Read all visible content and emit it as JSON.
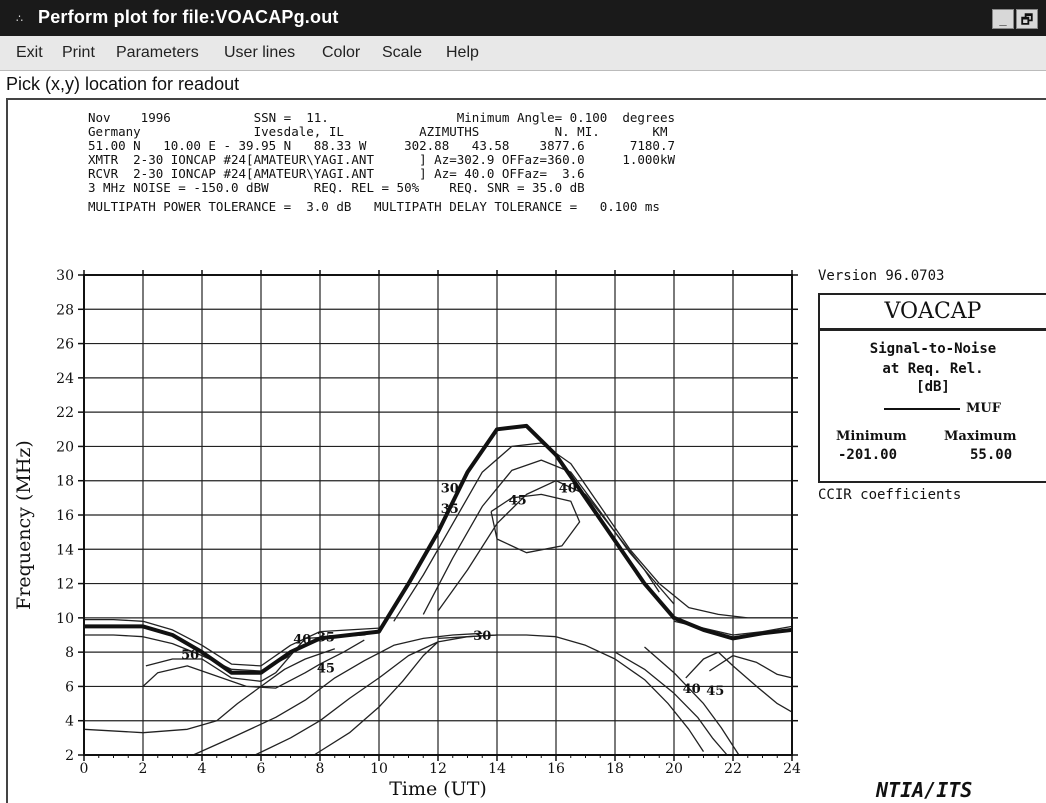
{
  "window": {
    "title": "Perform plot for file:VOACAPg.out",
    "minimize_label": "_",
    "restore_label": "🗗"
  },
  "menu": {
    "items": [
      {
        "label": "Exit"
      },
      {
        "label": "Print"
      },
      {
        "label": "Parameters"
      },
      {
        "label": "User lines"
      },
      {
        "label": "Color"
      },
      {
        "label": "Scale"
      },
      {
        "label": "Help"
      }
    ]
  },
  "prompt": "Pick (x,y) location for readout",
  "header_lines": [
    "Nov    1996           SSN =  11.                 Minimum Angle= 0.100  degrees",
    "Germany               Ivesdale, IL          AZIMUTHS          N. MI.       KM",
    "51.00 N   10.00 E - 39.95 N   88.33 W     302.88   43.58    3877.6      7180.7",
    "XMTR  2-30 IONCAP #24[AMATEUR\\YAGI.ANT      ] Az=302.9 OFFaz=360.0     1.000kW",
    "RCVR  2-30 IONCAP #24[AMATEUR\\YAGI.ANT      ] Az= 40.0 OFFaz=  3.6",
    "3 MHz NOISE = -150.0 dBW      REQ. REL = 50%    REQ. SNR = 35.0 dB",
    "MULTIPATH POWER TOLERANCE =  3.0 dB   MULTIPATH DELAY TOLERANCE =   0.100 ms"
  ],
  "legend": {
    "version": "Version 96.0703",
    "program": "VOACAP",
    "measure_lines": [
      "Signal-to-Noise",
      "at Req. Rel.",
      "[dB]"
    ],
    "muf_label": "MUF",
    "min_label": "Minimum",
    "max_label": "Maximum",
    "min_value": "-201.00",
    "max_value": "55.00",
    "coefficients": "CCIR coefficients"
  },
  "footer": "NTIA/ITS",
  "chart_data": {
    "type": "line",
    "xlabel": "Time  (UT)",
    "ylabel": "Frequency  (MHz)",
    "xlim": [
      0,
      24
    ],
    "ylim": [
      2,
      30
    ],
    "xticks": [
      0,
      2,
      4,
      6,
      8,
      10,
      12,
      14,
      16,
      18,
      20,
      22,
      24
    ],
    "yticks": [
      2,
      4,
      6,
      8,
      10,
      12,
      14,
      16,
      18,
      20,
      22,
      24,
      26,
      28,
      30
    ],
    "grid": true,
    "muf": {
      "name": "MUF",
      "x": [
        0,
        1,
        2,
        3,
        4,
        5,
        6,
        7,
        8,
        9,
        10,
        11,
        12,
        13,
        14,
        15,
        16,
        17,
        18,
        19,
        20,
        21,
        22,
        23,
        24
      ],
      "y": [
        9.5,
        9.5,
        9.5,
        9.0,
        8.0,
        6.8,
        6.8,
        8.0,
        8.8,
        9.0,
        9.2,
        12.0,
        15.0,
        18.5,
        21.0,
        21.2,
        19.5,
        17.0,
        14.5,
        12.0,
        10.0,
        9.3,
        8.8,
        9.1,
        9.3
      ]
    },
    "contour_labels": [
      {
        "text": "50",
        "x": 3.6,
        "y": 7.9
      },
      {
        "text": "40",
        "x": 7.4,
        "y": 8.8
      },
      {
        "text": "35",
        "x": 8.2,
        "y": 8.9
      },
      {
        "text": "45",
        "x": 8.2,
        "y": 7.1
      },
      {
        "text": "30",
        "x": 12.4,
        "y": 17.6
      },
      {
        "text": "35",
        "x": 12.4,
        "y": 16.4
      },
      {
        "text": "45",
        "x": 14.7,
        "y": 16.9
      },
      {
        "text": "40",
        "x": 16.4,
        "y": 17.6
      },
      {
        "text": "30",
        "x": 13.5,
        "y": 9.0
      },
      {
        "text": "40",
        "x": 20.6,
        "y": 5.9
      },
      {
        "text": "45",
        "x": 21.4,
        "y": 5.8
      }
    ],
    "contours": [
      {
        "name": "c50",
        "x": [
          2.1,
          3.0,
          4.0,
          5.0,
          6.0,
          6.5,
          7.0
        ],
        "y": [
          7.2,
          7.6,
          7.6,
          6.5,
          6.3,
          6.8,
          7.8
        ]
      },
      {
        "name": "c45-left",
        "x": [
          2.0,
          2.5,
          3.5,
          4.5,
          5.5,
          6.5,
          7.5,
          8.0,
          8.8,
          9.5
        ],
        "y": [
          6.0,
          6.8,
          7.2,
          6.6,
          6.0,
          5.9,
          6.8,
          7.3,
          8.0,
          8.7
        ]
      },
      {
        "name": "c40-left",
        "x": [
          0.0,
          1.0,
          2.0,
          3.0,
          4.0,
          5.0,
          6.0,
          7.0,
          7.5,
          8.5,
          9.5,
          10.0
        ],
        "y": [
          9.0,
          9.0,
          8.9,
          8.5,
          7.8,
          7.0,
          6.9,
          7.8,
          8.8,
          8.9,
          9.0,
          9.3
        ]
      },
      {
        "name": "c35-left",
        "x": [
          0.0,
          1.0,
          2.0,
          3.0,
          4.0,
          5.0,
          6.0,
          7.0,
          8.0,
          9.0,
          10.0
        ],
        "y": [
          9.9,
          9.9,
          9.8,
          9.3,
          8.4,
          7.3,
          7.2,
          8.4,
          9.2,
          9.3,
          9.4
        ]
      },
      {
        "name": "c30-left",
        "x": [
          0.0,
          2.0,
          3.5,
          4.5,
          5.2,
          6.0,
          6.8,
          7.5,
          8.5
        ],
        "y": [
          3.5,
          3.3,
          3.5,
          4.0,
          5.0,
          6.0,
          7.0,
          7.6,
          8.2
        ]
      },
      {
        "name": "c-low1",
        "x": [
          3.7,
          5.0,
          6.5,
          7.5,
          8.5,
          9.5,
          10.5,
          11.5,
          12.5,
          13.5
        ],
        "y": [
          2.0,
          3.0,
          4.2,
          5.2,
          6.5,
          7.5,
          8.4,
          8.8,
          9.0,
          9.1
        ]
      },
      {
        "name": "c-low2",
        "x": [
          5.8,
          7.0,
          8.0,
          9.0,
          10.0,
          11.0,
          12.0,
          13.0,
          14.0
        ],
        "y": [
          2.0,
          3.0,
          4.0,
          5.3,
          6.5,
          7.8,
          8.6,
          8.9,
          9.0
        ]
      },
      {
        "name": "c-low3",
        "x": [
          7.8,
          9.0,
          10.0,
          10.8,
          11.5,
          12.0
        ],
        "y": [
          2.0,
          3.3,
          4.8,
          6.3,
          7.8,
          8.6
        ]
      },
      {
        "name": "c30-mid",
        "x": [
          12.0,
          13.0,
          14.0,
          15.0,
          16.0,
          17.0,
          18.0,
          19.0,
          19.8,
          20.5,
          21.0
        ],
        "y": [
          8.8,
          8.9,
          9.0,
          9.0,
          8.9,
          8.4,
          7.6,
          6.4,
          5.0,
          3.5,
          2.2
        ]
      },
      {
        "name": "c30-right-a",
        "x": [
          18.0,
          19.0,
          20.0,
          20.8,
          21.3,
          21.8
        ],
        "y": [
          8.0,
          7.0,
          5.6,
          4.2,
          3.0,
          2.0
        ]
      },
      {
        "name": "c30-right-b",
        "x": [
          19.0,
          20.0,
          21.0,
          21.6,
          22.2
        ],
        "y": [
          8.3,
          6.8,
          5.0,
          3.6,
          2.0
        ]
      },
      {
        "name": "c40-right",
        "x": [
          20.4,
          21.0,
          21.5,
          22.0,
          22.8,
          23.5,
          24.0
        ],
        "y": [
          6.5,
          7.6,
          8.0,
          7.2,
          6.0,
          5.0,
          4.5
        ]
      },
      {
        "name": "c45-right",
        "x": [
          21.2,
          22.0,
          22.8,
          23.5,
          24.0
        ],
        "y": [
          6.9,
          7.8,
          7.4,
          6.7,
          6.5
        ]
      },
      {
        "name": "c35-right",
        "x": [
          20.0,
          21.0,
          22.0,
          23.0,
          24.0
        ],
        "y": [
          9.8,
          9.4,
          9.0,
          9.2,
          9.5
        ]
      },
      {
        "name": "c30-outer",
        "x": [
          10.5,
          11.5,
          12.5,
          13.5,
          14.5,
          15.5,
          16.5,
          17.5,
          18.5,
          19.5,
          20.5,
          21.5,
          22.5,
          23.5,
          24.0
        ],
        "y": [
          9.8,
          12.5,
          15.5,
          18.5,
          20.0,
          20.2,
          19.0,
          16.5,
          14.0,
          12.0,
          10.6,
          10.2,
          10.0,
          10.0,
          10.0
        ]
      },
      {
        "name": "c35-inner",
        "x": [
          11.5,
          12.5,
          13.5,
          14.5,
          15.5,
          16.5,
          17.5,
          18.5,
          19.5,
          20.0
        ],
        "y": [
          10.2,
          13.5,
          16.5,
          18.6,
          19.2,
          18.5,
          16.2,
          13.8,
          11.8,
          10.8
        ]
      },
      {
        "name": "c40-inner",
        "x": [
          12.0,
          13.0,
          14.0,
          15.0,
          16.0,
          17.0,
          18.0,
          19.0,
          19.5
        ],
        "y": [
          10.4,
          12.8,
          15.5,
          17.2,
          18.0,
          17.2,
          15.0,
          12.8,
          11.5
        ]
      },
      {
        "name": "c45-island",
        "x": [
          13.8,
          14.5,
          15.5,
          16.5,
          16.8,
          16.2,
          15.0,
          14.0,
          13.8
        ],
        "y": [
          16.2,
          17.0,
          17.2,
          16.8,
          15.6,
          14.2,
          13.8,
          14.6,
          16.2
        ]
      }
    ]
  }
}
